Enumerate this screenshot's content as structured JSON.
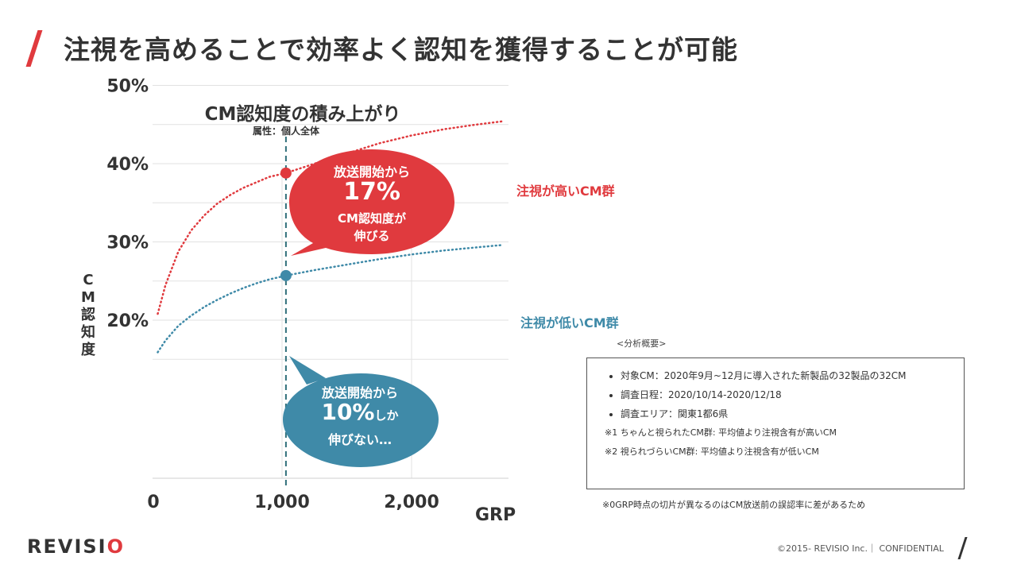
{
  "page": {
    "title": "注視を高めることで効率よく認知を獲得することが可能"
  },
  "chart_data": {
    "type": "line",
    "title": "CM認知度の積み上がり",
    "subtitle": "属性：個人全体",
    "xlabel": "GRP",
    "ylabel": "CM認知度",
    "xlim": [
      0,
      2750
    ],
    "ylim": [
      10,
      50
    ],
    "x_ticks": [
      {
        "value": 0,
        "label": "0"
      },
      {
        "value": 1000,
        "label": "1,000"
      },
      {
        "value": 2000,
        "label": "2,000"
      }
    ],
    "y_ticks": [
      {
        "value": 20,
        "label": "20%"
      },
      {
        "value": 30,
        "label": "30%"
      },
      {
        "value": 40,
        "label": "40%"
      },
      {
        "value": 50,
        "label": "50%"
      }
    ],
    "grid": true,
    "reference_x": 1030,
    "series": [
      {
        "name": "注視が高いCM群",
        "color": "#e03a3e",
        "style": "dotted",
        "points": [
          [
            40,
            20.8
          ],
          [
            100,
            24.5
          ],
          [
            200,
            28.8
          ],
          [
            300,
            31.5
          ],
          [
            400,
            33.4
          ],
          [
            500,
            34.9
          ],
          [
            600,
            36.0
          ],
          [
            700,
            36.9
          ],
          [
            800,
            37.6
          ],
          [
            900,
            38.3
          ],
          [
            1030,
            38.8
          ],
          [
            1250,
            40.0
          ],
          [
            1500,
            41.3
          ],
          [
            1750,
            42.6
          ],
          [
            2000,
            43.6
          ],
          [
            2250,
            44.4
          ],
          [
            2500,
            45.0
          ],
          [
            2700,
            45.4
          ]
        ],
        "marker": [
          1030,
          38.8
        ]
      },
      {
        "name": "注視が低いCM群",
        "color": "#3f8aa8",
        "style": "dotted",
        "points": [
          [
            40,
            15.9
          ],
          [
            100,
            17.4
          ],
          [
            200,
            19.3
          ],
          [
            300,
            20.6
          ],
          [
            400,
            21.7
          ],
          [
            500,
            22.6
          ],
          [
            600,
            23.4
          ],
          [
            700,
            24.1
          ],
          [
            800,
            24.7
          ],
          [
            900,
            25.2
          ],
          [
            1030,
            25.7
          ],
          [
            1250,
            26.4
          ],
          [
            1500,
            27.1
          ],
          [
            1750,
            27.8
          ],
          [
            2000,
            28.4
          ],
          [
            2250,
            28.9
          ],
          [
            2500,
            29.3
          ],
          [
            2700,
            29.6
          ]
        ],
        "marker": [
          1030,
          25.7
        ]
      }
    ],
    "callouts": {
      "high": {
        "line1": "放送開始から",
        "line2": "17%",
        "line3": "CM認知度が",
        "line4": "伸びる",
        "color": "#e03a3e"
      },
      "low": {
        "line1": "放送開始から",
        "line2_main": "10%",
        "line2_small": "しか",
        "line3": "伸びない…",
        "color": "#3f8aa8"
      }
    }
  },
  "summary": {
    "heading": "<分析概要>",
    "items": [
      "対象CM：2020年9月~12月に導入された新製品の32製品の32CM",
      "調査日程：2020/10/14-2020/12/18",
      "調査エリア：関東1都6県"
    ],
    "notes": [
      "※1 ちゃんと視られたCM群: 平均値より注視含有が高いCM",
      "※2 視られづらいCM群: 平均値より注視含有が低いCM"
    ]
  },
  "footnote": "※0GRP時点の切片が異なるのはCM放送前の誤認率に差があるため",
  "footer": {
    "logo_main": "REVISI",
    "logo_accent": "O",
    "copyright": "©2015- REVISIO Inc.｜ CONFIDENTIAL"
  }
}
